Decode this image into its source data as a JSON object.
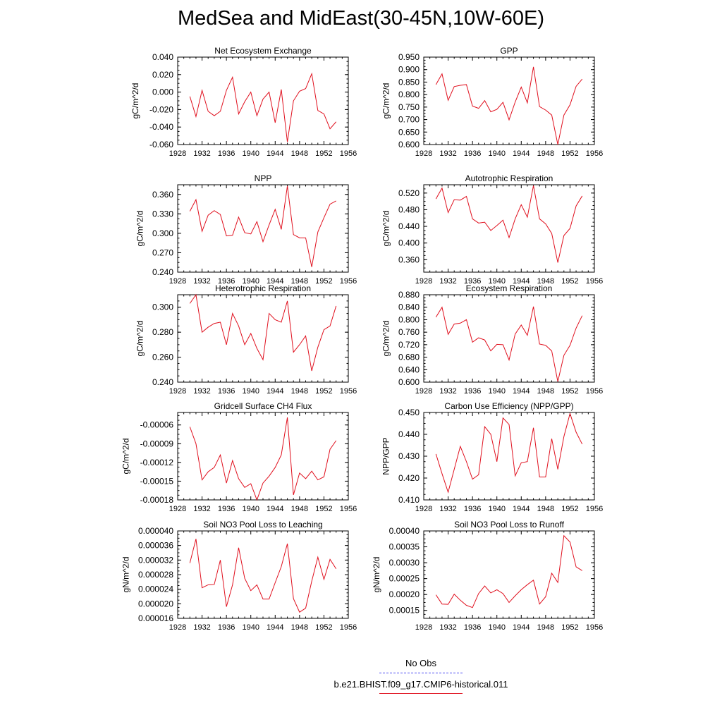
{
  "title": "MedSea and MidEast(30-45N,10W-60E)",
  "legend": [
    {
      "label": "No Obs",
      "color": "#4a4af0",
      "dash": true
    },
    {
      "label": "b.e21.BHIST.f09_g17.CMIP6-historical.011",
      "color": "#e0101e",
      "dash": false
    }
  ],
  "chart_data": [
    {
      "type": "line",
      "title": "Net Ecosystem Exchange",
      "ylabel": "gC/m^2/d",
      "xlim": [
        1928,
        1956
      ],
      "xticks": [
        "1928",
        "1932",
        "1936",
        "1940",
        "1944",
        "1948",
        "1952",
        "1956"
      ],
      "ylim": [
        -0.06,
        0.04
      ],
      "yticks": [
        "-0.060",
        "-0.040",
        "-0.020",
        "0.000",
        "0.020",
        "0.040"
      ],
      "x": [
        1930,
        1931,
        1932,
        1933,
        1934,
        1935,
        1936,
        1937,
        1938,
        1939,
        1940,
        1941,
        1942,
        1943,
        1944,
        1945,
        1946,
        1947,
        1948,
        1949,
        1950,
        1951,
        1952,
        1953,
        1954
      ],
      "series": [
        {
          "color": "#e0101e",
          "values": [
            -0.005,
            -0.028,
            0.002,
            -0.022,
            -0.027,
            -0.022,
            0.002,
            0.017,
            -0.025,
            -0.011,
            0.0,
            -0.027,
            -0.008,
            0.0,
            -0.035,
            0.003,
            -0.057,
            -0.01,
            0.001,
            0.004,
            0.021,
            -0.021,
            -0.025,
            -0.042,
            -0.034
          ]
        }
      ]
    },
    {
      "type": "line",
      "title": "GPP",
      "ylabel": "gC/m^2/d",
      "xlim": [
        1928,
        1956
      ],
      "xticks": [
        "1928",
        "1932",
        "1936",
        "1940",
        "1944",
        "1948",
        "1952",
        "1956"
      ],
      "ylim": [
        0.6,
        0.95
      ],
      "yticks": [
        "0.600",
        "0.650",
        "0.700",
        "0.750",
        "0.800",
        "0.850",
        "0.900",
        "0.950"
      ],
      "x": [
        1930,
        1931,
        1932,
        1933,
        1934,
        1935,
        1936,
        1937,
        1938,
        1939,
        1940,
        1941,
        1942,
        1943,
        1944,
        1945,
        1946,
        1947,
        1948,
        1949,
        1950,
        1951,
        1952,
        1953,
        1954
      ],
      "series": [
        {
          "color": "#e0101e",
          "values": [
            0.84,
            0.883,
            0.777,
            0.832,
            0.837,
            0.84,
            0.754,
            0.745,
            0.776,
            0.731,
            0.741,
            0.769,
            0.699,
            0.77,
            0.83,
            0.767,
            0.911,
            0.752,
            0.738,
            0.718,
            0.6,
            0.718,
            0.759,
            0.833,
            0.862
          ]
        }
      ]
    },
    {
      "type": "line",
      "title": "NPP",
      "ylabel": "gC/m^2/d",
      "xlim": [
        1928,
        1956
      ],
      "xticks": [
        "1928",
        "1932",
        "1936",
        "1940",
        "1944",
        "1948",
        "1952",
        "1956"
      ],
      "ylim": [
        0.24,
        0.375
      ],
      "yticks": [
        "0.240",
        "0.270",
        "0.300",
        "0.330",
        "0.360"
      ],
      "x": [
        1930,
        1931,
        1932,
        1933,
        1934,
        1935,
        1936,
        1937,
        1938,
        1939,
        1940,
        1941,
        1942,
        1943,
        1944,
        1945,
        1946,
        1947,
        1948,
        1949,
        1950,
        1951,
        1952,
        1953,
        1954
      ],
      "series": [
        {
          "color": "#e0101e",
          "values": [
            0.334,
            0.352,
            0.303,
            0.328,
            0.335,
            0.329,
            0.296,
            0.297,
            0.325,
            0.301,
            0.299,
            0.318,
            0.287,
            0.313,
            0.337,
            0.306,
            0.373,
            0.298,
            0.293,
            0.293,
            0.248,
            0.302,
            0.324,
            0.345,
            0.35
          ]
        }
      ]
    },
    {
      "type": "line",
      "title": "Autotrophic Respiration",
      "ylabel": "gC/m^2/d",
      "xlim": [
        1928,
        1956
      ],
      "xticks": [
        "1928",
        "1932",
        "1936",
        "1940",
        "1944",
        "1948",
        "1952",
        "1956"
      ],
      "ylim": [
        0.33,
        0.54
      ],
      "yticks": [
        "0.360",
        "0.400",
        "0.440",
        "0.480",
        "0.520"
      ],
      "x": [
        1930,
        1931,
        1932,
        1933,
        1934,
        1935,
        1936,
        1937,
        1938,
        1939,
        1940,
        1941,
        1942,
        1943,
        1944,
        1945,
        1946,
        1947,
        1948,
        1949,
        1950,
        1951,
        1952,
        1953,
        1954
      ],
      "series": [
        {
          "color": "#e0101e",
          "values": [
            0.506,
            0.532,
            0.473,
            0.504,
            0.503,
            0.512,
            0.458,
            0.448,
            0.45,
            0.43,
            0.442,
            0.455,
            0.413,
            0.458,
            0.492,
            0.462,
            0.538,
            0.458,
            0.446,
            0.423,
            0.353,
            0.418,
            0.435,
            0.489,
            0.513
          ]
        }
      ]
    },
    {
      "type": "line",
      "title": "Heterotrophic Respiration",
      "ylabel": "gC/m^2/d",
      "xlim": [
        1928,
        1956
      ],
      "xticks": [
        "1928",
        "1932",
        "1936",
        "1940",
        "1944",
        "1948",
        "1952",
        "1956"
      ],
      "ylim": [
        0.24,
        0.31
      ],
      "yticks": [
        "0.240",
        "0.260",
        "0.280",
        "0.300"
      ],
      "x": [
        1930,
        1931,
        1932,
        1933,
        1934,
        1935,
        1936,
        1937,
        1938,
        1939,
        1940,
        1941,
        1942,
        1943,
        1944,
        1945,
        1946,
        1947,
        1948,
        1949,
        1950,
        1951,
        1952,
        1953,
        1954
      ],
      "series": [
        {
          "color": "#e0101e",
          "values": [
            0.303,
            0.31,
            0.28,
            0.284,
            0.287,
            0.288,
            0.27,
            0.295,
            0.285,
            0.27,
            0.279,
            0.267,
            0.258,
            0.295,
            0.29,
            0.288,
            0.305,
            0.264,
            0.27,
            0.277,
            0.249,
            0.268,
            0.282,
            0.285,
            0.301
          ]
        }
      ]
    },
    {
      "type": "line",
      "title": "Ecosystem Respiration",
      "ylabel": "gC/m^2/d",
      "xlim": [
        1928,
        1956
      ],
      "xticks": [
        "1928",
        "1932",
        "1936",
        "1940",
        "1944",
        "1948",
        "1952",
        "1956"
      ],
      "ylim": [
        0.6,
        0.88
      ],
      "yticks": [
        "0.600",
        "0.640",
        "0.680",
        "0.720",
        "0.760",
        "0.800",
        "0.840",
        "0.880"
      ],
      "x": [
        1930,
        1931,
        1932,
        1933,
        1934,
        1935,
        1936,
        1937,
        1938,
        1939,
        1940,
        1941,
        1942,
        1943,
        1944,
        1945,
        1946,
        1947,
        1948,
        1949,
        1950,
        1951,
        1952,
        1953,
        1954
      ],
      "series": [
        {
          "color": "#e0101e",
          "values": [
            0.808,
            0.84,
            0.753,
            0.786,
            0.789,
            0.8,
            0.728,
            0.742,
            0.735,
            0.7,
            0.721,
            0.72,
            0.671,
            0.754,
            0.783,
            0.75,
            0.842,
            0.722,
            0.718,
            0.7,
            0.602,
            0.686,
            0.718,
            0.773,
            0.813
          ]
        }
      ]
    },
    {
      "type": "line",
      "title": "Gridcell Surface CH4 Flux",
      "ylabel": "gC/m^2/d",
      "xlim": [
        1928,
        1956
      ],
      "xticks": [
        "1928",
        "1932",
        "1936",
        "1940",
        "1944",
        "1948",
        "1952",
        "1956"
      ],
      "ylim": [
        -0.00018,
        -4e-05
      ],
      "yticks": [
        "-0.00018",
        "-0.00015",
        "-0.00012",
        "-0.00009",
        "-0.00006"
      ],
      "x": [
        1930,
        1931,
        1932,
        1933,
        1934,
        1935,
        1936,
        1937,
        1938,
        1939,
        1940,
        1941,
        1942,
        1943,
        1944,
        1945,
        1946,
        1947,
        1948,
        1949,
        1950,
        1951,
        1952,
        1953,
        1954
      ],
      "series": [
        {
          "color": "#e0101e",
          "values": [
            -6.3e-05,
            -9e-05,
            -0.000148,
            -0.000135,
            -0.000128,
            -0.000108,
            -0.000153,
            -0.000117,
            -0.000146,
            -0.00016,
            -0.000154,
            -0.00018,
            -0.000153,
            -0.000142,
            -0.000128,
            -0.000108,
            -4.8e-05,
            -0.000172,
            -0.000137,
            -0.000146,
            -0.000134,
            -0.000148,
            -0.000143,
            -9.9e-05,
            -8.5e-05
          ]
        }
      ]
    },
    {
      "type": "line",
      "title": "Carbon Use Efficiency (NPP/GPP)",
      "ylabel": "NPP/GPP",
      "xlim": [
        1928,
        1956
      ],
      "xticks": [
        "1928",
        "1932",
        "1936",
        "1940",
        "1944",
        "1948",
        "1952",
        "1956"
      ],
      "ylim": [
        0.41,
        0.45
      ],
      "yticks": [
        "0.410",
        "0.420",
        "0.430",
        "0.440",
        "0.450"
      ],
      "x": [
        1930,
        1931,
        1932,
        1933,
        1934,
        1935,
        1936,
        1937,
        1938,
        1939,
        1940,
        1941,
        1942,
        1943,
        1944,
        1945,
        1946,
        1947,
        1948,
        1949,
        1950,
        1951,
        1952,
        1953,
        1954
      ],
      "series": [
        {
          "color": "#e0101e",
          "values": [
            0.431,
            0.422,
            0.4135,
            0.424,
            0.4345,
            0.4275,
            0.4195,
            0.4215,
            0.4435,
            0.44,
            0.4275,
            0.4475,
            0.4445,
            0.421,
            0.427,
            0.4275,
            0.443,
            0.4205,
            0.4205,
            0.438,
            0.424,
            0.439,
            0.4495,
            0.441,
            0.4355
          ]
        }
      ]
    },
    {
      "type": "line",
      "title": "Soil NO3 Pool Loss to Leaching",
      "ylabel": "gN/m^2/d",
      "xlim": [
        1928,
        1956
      ],
      "xticks": [
        "1928",
        "1932",
        "1936",
        "1940",
        "1944",
        "1948",
        "1952",
        "1956"
      ],
      "ylim": [
        1.6e-05,
        4e-05
      ],
      "yticks": [
        "0.000016",
        "0.000020",
        "0.000024",
        "0.000028",
        "0.000032",
        "0.000036",
        "0.000040"
      ],
      "x": [
        1930,
        1931,
        1932,
        1933,
        1934,
        1935,
        1936,
        1937,
        1938,
        1939,
        1940,
        1941,
        1942,
        1943,
        1944,
        1945,
        1946,
        1947,
        1948,
        1949,
        1950,
        1951,
        1952,
        1953,
        1954
      ],
      "series": [
        {
          "color": "#e0101e",
          "values": [
            3.12e-05,
            3.78e-05,
            2.44e-05,
            2.52e-05,
            2.53e-05,
            3.2e-05,
            1.92e-05,
            2.52e-05,
            3.54e-05,
            2.7e-05,
            2.36e-05,
            2.52e-05,
            2.13e-05,
            2.13e-05,
            2.58e-05,
            3.02e-05,
            3.65e-05,
            2.14e-05,
            1.77e-05,
            1.88e-05,
            2.62e-05,
            3.28e-05,
            2.67e-05,
            3.22e-05,
            2.96e-05
          ]
        }
      ]
    },
    {
      "type": "line",
      "title": "Soil NO3 Pool Loss to Runoff",
      "ylabel": "gN/m^2/d",
      "xlim": [
        1928,
        1956
      ],
      "xticks": [
        "1928",
        "1932",
        "1936",
        "1940",
        "1944",
        "1948",
        "1952",
        "1956"
      ],
      "ylim": [
        0.000125,
        0.0004
      ],
      "yticks": [
        "0.00015",
        "0.00020",
        "0.00025",
        "0.00030",
        "0.00035",
        "0.00040"
      ],
      "x": [
        1930,
        1931,
        1932,
        1933,
        1934,
        1935,
        1936,
        1937,
        1938,
        1939,
        1940,
        1941,
        1942,
        1943,
        1944,
        1945,
        1946,
        1947,
        1948,
        1949,
        1950,
        1951,
        1952,
        1953,
        1954
      ],
      "series": [
        {
          "color": "#e0101e",
          "values": [
            0.000199,
            0.00017,
            0.000169,
            0.000201,
            0.000182,
            0.000166,
            0.000159,
            0.000203,
            0.000227,
            0.000205,
            0.000215,
            0.000203,
            0.000175,
            0.000196,
            0.000215,
            0.000231,
            0.000245,
            0.00017,
            0.000193,
            0.000267,
            0.000238,
            0.000385,
            0.000365,
            0.000287,
            0.000275
          ]
        }
      ]
    }
  ]
}
